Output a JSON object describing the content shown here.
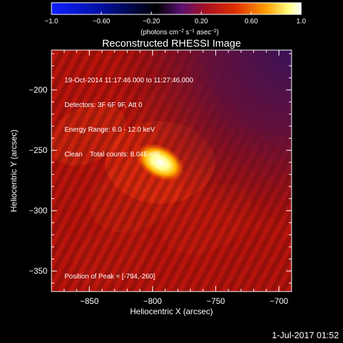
{
  "chart_data": {
    "type": "heatmap",
    "title": "Reconstructed RHESSI Image",
    "xlabel": "Heliocentric X (arcsec)",
    "ylabel": "Heliocentric Y (arcsec)",
    "xlim": [
      -880,
      -690
    ],
    "ylim": [
      -367,
      -167
    ],
    "xticks": [
      -850,
      -800,
      -750,
      -700
    ],
    "yticks": [
      -350,
      -300,
      -250,
      -200
    ],
    "xtick_labels": [
      "−850",
      "−800",
      "−750",
      "−700"
    ],
    "ytick_labels": [
      "−350",
      "−300",
      "−250",
      "−200"
    ],
    "peak": [
      -794,
      -260
    ],
    "colorbar": {
      "range": [
        -1.0,
        1.0
      ],
      "ticks": [
        -1.0,
        -0.6,
        -0.2,
        0.2,
        0.6,
        1.0
      ],
      "tick_labels": [
        "−1.0",
        "−0.60",
        "−0.20",
        "0.20",
        "0.60",
        "1.0"
      ],
      "colormap": "blue-black-purple-red-orange-yellow-white",
      "label_parts": {
        "a": "(photons cm",
        "a_sup": "−2",
        "b": " s",
        "b_sup": "−1",
        "c": " asec",
        "c_sup": "−2",
        "d": ")"
      }
    }
  },
  "info": {
    "time_range": "19-Oct-2014 11:17:46.000 to 11:27:46.000",
    "detectors": "Detectors: 3F 6F 9F, Att 0",
    "energy": "Energy Range: 6.0 - 12.0 keV",
    "method": "Clean    Total counts: 8.04E+05",
    "peak_label": "Position of Peak = [-794,-260]"
  },
  "timestamp": "1-Jul-2017 01:52"
}
